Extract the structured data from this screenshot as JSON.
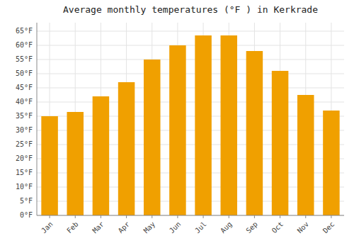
{
  "chart_data": {
    "type": "bar",
    "title": "Average monthly temperatures (°F ) in Kerkrade",
    "categories": [
      "Jan",
      "Feb",
      "Mar",
      "Apr",
      "May",
      "Jun",
      "Jul",
      "Aug",
      "Sep",
      "Oct",
      "Nov",
      "Dec"
    ],
    "values": [
      35,
      36.5,
      42,
      47,
      55,
      60,
      63.5,
      63.5,
      58,
      51,
      42.5,
      37
    ],
    "color": "#F0A000",
    "ylim": [
      0,
      68
    ],
    "yticks": [
      {
        "value": 0,
        "label": "0°F"
      },
      {
        "value": 5,
        "label": "5°F"
      },
      {
        "value": 10,
        "label": "10°F"
      },
      {
        "value": 15,
        "label": "15°F"
      },
      {
        "value": 20,
        "label": "20°F"
      },
      {
        "value": 25,
        "label": "25°F"
      },
      {
        "value": 30,
        "label": "30°F"
      },
      {
        "value": 35,
        "label": "35°F"
      },
      {
        "value": 40,
        "label": "40°F"
      },
      {
        "value": 45,
        "label": "45°F"
      },
      {
        "value": 50,
        "label": "50°F"
      },
      {
        "value": 55,
        "label": "55°F"
      },
      {
        "value": 60,
        "label": "60°F"
      },
      {
        "value": 65,
        "label": "65°F"
      }
    ],
    "grid": true
  }
}
